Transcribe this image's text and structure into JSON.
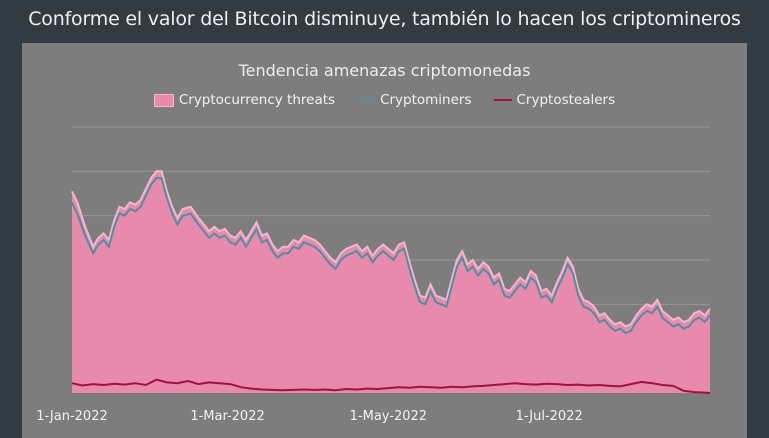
{
  "page": {
    "title": "Conforme el valor del Bitcoin disminuye, también lo hacen los criptomineros"
  },
  "colors": {
    "background": "#323a42",
    "panel": "#7d7d7d",
    "threats_fill": "#e88aab",
    "threats_line": "#f4b7cd",
    "miners": "#4f8fa0",
    "stealers": "#a3103e",
    "grid": "#999999"
  },
  "chart_data": {
    "type": "area",
    "title": "Tendencia amenazas criptomonedas",
    "xlabel": "",
    "ylabel": "",
    "grid": "horizontal",
    "legend_placement": "top",
    "x_tick_labels": [
      "1-Jan-2022",
      "1-Mar-2022",
      "1-May-2022",
      "1-Jul-2022"
    ],
    "x_tick_days": [
      0,
      59,
      120,
      181
    ],
    "x_range_days": [
      0,
      242
    ],
    "ylim": [
      0,
      6
    ],
    "series": [
      {
        "name": "Cryptocurrency threats",
        "kind": "area",
        "points": [
          [
            0,
            4.55
          ],
          [
            2,
            4.3
          ],
          [
            5,
            3.75
          ],
          [
            8,
            3.3
          ],
          [
            10,
            3.5
          ],
          [
            12,
            3.6
          ],
          [
            14,
            3.45
          ],
          [
            16,
            3.9
          ],
          [
            18,
            4.2
          ],
          [
            20,
            4.15
          ],
          [
            22,
            4.3
          ],
          [
            24,
            4.25
          ],
          [
            26,
            4.35
          ],
          [
            28,
            4.6
          ],
          [
            30,
            4.85
          ],
          [
            32,
            5.0
          ],
          [
            34,
            5.0
          ],
          [
            36,
            4.55
          ],
          [
            38,
            4.2
          ],
          [
            40,
            3.95
          ],
          [
            42,
            4.15
          ],
          [
            45,
            4.2
          ],
          [
            48,
            3.95
          ],
          [
            50,
            3.8
          ],
          [
            52,
            3.65
          ],
          [
            54,
            3.75
          ],
          [
            56,
            3.65
          ],
          [
            58,
            3.7
          ],
          [
            60,
            3.55
          ],
          [
            62,
            3.5
          ],
          [
            64,
            3.65
          ],
          [
            66,
            3.45
          ],
          [
            68,
            3.65
          ],
          [
            70,
            3.85
          ],
          [
            72,
            3.55
          ],
          [
            74,
            3.6
          ],
          [
            76,
            3.35
          ],
          [
            78,
            3.2
          ],
          [
            80,
            3.3
          ],
          [
            82,
            3.3
          ],
          [
            84,
            3.45
          ],
          [
            86,
            3.4
          ],
          [
            88,
            3.55
          ],
          [
            90,
            3.5
          ],
          [
            92,
            3.45
          ],
          [
            94,
            3.35
          ],
          [
            96,
            3.2
          ],
          [
            98,
            3.05
          ],
          [
            100,
            2.95
          ],
          [
            102,
            3.15
          ],
          [
            104,
            3.25
          ],
          [
            106,
            3.3
          ],
          [
            108,
            3.35
          ],
          [
            110,
            3.2
          ],
          [
            112,
            3.3
          ],
          [
            114,
            3.1
          ],
          [
            116,
            3.25
          ],
          [
            118,
            3.35
          ],
          [
            120,
            3.25
          ],
          [
            122,
            3.15
          ],
          [
            124,
            3.35
          ],
          [
            126,
            3.4
          ],
          [
            128,
            2.95
          ],
          [
            130,
            2.55
          ],
          [
            132,
            2.2
          ],
          [
            134,
            2.15
          ],
          [
            136,
            2.45
          ],
          [
            138,
            2.2
          ],
          [
            140,
            2.15
          ],
          [
            142,
            2.1
          ],
          [
            144,
            2.55
          ],
          [
            146,
            3.0
          ],
          [
            148,
            3.2
          ],
          [
            150,
            2.9
          ],
          [
            152,
            3.0
          ],
          [
            154,
            2.8
          ],
          [
            156,
            2.95
          ],
          [
            158,
            2.85
          ],
          [
            160,
            2.6
          ],
          [
            162,
            2.7
          ],
          [
            164,
            2.35
          ],
          [
            166,
            2.3
          ],
          [
            168,
            2.45
          ],
          [
            170,
            2.6
          ],
          [
            172,
            2.5
          ],
          [
            174,
            2.75
          ],
          [
            176,
            2.65
          ],
          [
            178,
            2.3
          ],
          [
            180,
            2.35
          ],
          [
            182,
            2.2
          ],
          [
            184,
            2.5
          ],
          [
            186,
            2.75
          ],
          [
            188,
            3.05
          ],
          [
            190,
            2.85
          ],
          [
            192,
            2.35
          ],
          [
            194,
            2.1
          ],
          [
            196,
            2.05
          ],
          [
            198,
            1.95
          ],
          [
            200,
            1.75
          ],
          [
            202,
            1.8
          ],
          [
            204,
            1.65
          ],
          [
            206,
            1.55
          ],
          [
            208,
            1.6
          ],
          [
            210,
            1.5
          ],
          [
            212,
            1.55
          ],
          [
            214,
            1.75
          ],
          [
            216,
            1.9
          ],
          [
            218,
            2.0
          ],
          [
            220,
            1.95
          ],
          [
            222,
            2.1
          ],
          [
            224,
            1.85
          ],
          [
            226,
            1.75
          ],
          [
            228,
            1.65
          ],
          [
            230,
            1.7
          ],
          [
            232,
            1.6
          ],
          [
            234,
            1.65
          ],
          [
            236,
            1.8
          ],
          [
            238,
            1.85
          ],
          [
            240,
            1.75
          ],
          [
            242,
            1.9
          ]
        ]
      },
      {
        "name": "Cryptominers",
        "kind": "line",
        "points": [
          [
            0,
            4.3
          ],
          [
            2,
            4.05
          ],
          [
            5,
            3.55
          ],
          [
            8,
            3.15
          ],
          [
            10,
            3.35
          ],
          [
            12,
            3.45
          ],
          [
            14,
            3.3
          ],
          [
            16,
            3.75
          ],
          [
            18,
            4.05
          ],
          [
            20,
            4.0
          ],
          [
            22,
            4.15
          ],
          [
            24,
            4.1
          ],
          [
            26,
            4.2
          ],
          [
            28,
            4.45
          ],
          [
            30,
            4.7
          ],
          [
            32,
            4.85
          ],
          [
            34,
            4.85
          ],
          [
            36,
            4.4
          ],
          [
            38,
            4.05
          ],
          [
            40,
            3.8
          ],
          [
            42,
            4.0
          ],
          [
            45,
            4.05
          ],
          [
            48,
            3.8
          ],
          [
            50,
            3.65
          ],
          [
            52,
            3.5
          ],
          [
            54,
            3.6
          ],
          [
            56,
            3.5
          ],
          [
            58,
            3.55
          ],
          [
            60,
            3.4
          ],
          [
            62,
            3.35
          ],
          [
            64,
            3.5
          ],
          [
            66,
            3.3
          ],
          [
            68,
            3.5
          ],
          [
            70,
            3.7
          ],
          [
            72,
            3.4
          ],
          [
            74,
            3.45
          ],
          [
            76,
            3.2
          ],
          [
            78,
            3.05
          ],
          [
            80,
            3.15
          ],
          [
            82,
            3.15
          ],
          [
            84,
            3.3
          ],
          [
            86,
            3.25
          ],
          [
            88,
            3.4
          ],
          [
            90,
            3.35
          ],
          [
            92,
            3.3
          ],
          [
            94,
            3.2
          ],
          [
            96,
            3.05
          ],
          [
            98,
            2.9
          ],
          [
            100,
            2.8
          ],
          [
            102,
            3.0
          ],
          [
            104,
            3.1
          ],
          [
            106,
            3.15
          ],
          [
            108,
            3.2
          ],
          [
            110,
            3.05
          ],
          [
            112,
            3.15
          ],
          [
            114,
            2.95
          ],
          [
            116,
            3.1
          ],
          [
            118,
            3.2
          ],
          [
            120,
            3.1
          ],
          [
            122,
            3.0
          ],
          [
            124,
            3.2
          ],
          [
            126,
            3.25
          ],
          [
            128,
            2.8
          ],
          [
            130,
            2.4
          ],
          [
            132,
            2.05
          ],
          [
            134,
            2.0
          ],
          [
            136,
            2.3
          ],
          [
            138,
            2.05
          ],
          [
            140,
            2.0
          ],
          [
            142,
            1.95
          ],
          [
            144,
            2.4
          ],
          [
            146,
            2.85
          ],
          [
            148,
            3.05
          ],
          [
            150,
            2.75
          ],
          [
            152,
            2.85
          ],
          [
            154,
            2.65
          ],
          [
            156,
            2.8
          ],
          [
            158,
            2.7
          ],
          [
            160,
            2.45
          ],
          [
            162,
            2.55
          ],
          [
            164,
            2.2
          ],
          [
            166,
            2.15
          ],
          [
            168,
            2.3
          ],
          [
            170,
            2.45
          ],
          [
            172,
            2.35
          ],
          [
            174,
            2.6
          ],
          [
            176,
            2.5
          ],
          [
            178,
            2.15
          ],
          [
            180,
            2.2
          ],
          [
            182,
            2.05
          ],
          [
            184,
            2.35
          ],
          [
            186,
            2.6
          ],
          [
            188,
            2.9
          ],
          [
            190,
            2.7
          ],
          [
            192,
            2.2
          ],
          [
            194,
            1.95
          ],
          [
            196,
            1.9
          ],
          [
            198,
            1.8
          ],
          [
            200,
            1.6
          ],
          [
            202,
            1.65
          ],
          [
            204,
            1.5
          ],
          [
            206,
            1.4
          ],
          [
            208,
            1.45
          ],
          [
            210,
            1.35
          ],
          [
            212,
            1.4
          ],
          [
            214,
            1.6
          ],
          [
            216,
            1.75
          ],
          [
            218,
            1.85
          ],
          [
            220,
            1.8
          ],
          [
            222,
            1.95
          ],
          [
            224,
            1.7
          ],
          [
            226,
            1.6
          ],
          [
            228,
            1.5
          ],
          [
            230,
            1.55
          ],
          [
            232,
            1.45
          ],
          [
            234,
            1.5
          ],
          [
            236,
            1.65
          ],
          [
            238,
            1.7
          ],
          [
            240,
            1.6
          ],
          [
            242,
            1.75
          ]
        ]
      },
      {
        "name": "Cryptostealers",
        "kind": "line",
        "points": [
          [
            0,
            0.22
          ],
          [
            4,
            0.17
          ],
          [
            8,
            0.2
          ],
          [
            12,
            0.18
          ],
          [
            16,
            0.21
          ],
          [
            20,
            0.19
          ],
          [
            24,
            0.22
          ],
          [
            28,
            0.18
          ],
          [
            32,
            0.3
          ],
          [
            36,
            0.24
          ],
          [
            40,
            0.22
          ],
          [
            44,
            0.27
          ],
          [
            48,
            0.2
          ],
          [
            52,
            0.24
          ],
          [
            56,
            0.22
          ],
          [
            60,
            0.2
          ],
          [
            64,
            0.13
          ],
          [
            68,
            0.1
          ],
          [
            72,
            0.08
          ],
          [
            76,
            0.07
          ],
          [
            80,
            0.06
          ],
          [
            84,
            0.07
          ],
          [
            88,
            0.08
          ],
          [
            92,
            0.07
          ],
          [
            96,
            0.08
          ],
          [
            100,
            0.06
          ],
          [
            104,
            0.09
          ],
          [
            108,
            0.08
          ],
          [
            112,
            0.1
          ],
          [
            116,
            0.09
          ],
          [
            120,
            0.11
          ],
          [
            124,
            0.13
          ],
          [
            128,
            0.12
          ],
          [
            132,
            0.14
          ],
          [
            136,
            0.13
          ],
          [
            140,
            0.12
          ],
          [
            144,
            0.14
          ],
          [
            148,
            0.13
          ],
          [
            152,
            0.15
          ],
          [
            156,
            0.16
          ],
          [
            160,
            0.18
          ],
          [
            164,
            0.2
          ],
          [
            168,
            0.22
          ],
          [
            172,
            0.2
          ],
          [
            176,
            0.19
          ],
          [
            180,
            0.21
          ],
          [
            184,
            0.2
          ],
          [
            188,
            0.18
          ],
          [
            192,
            0.19
          ],
          [
            196,
            0.17
          ],
          [
            200,
            0.18
          ],
          [
            204,
            0.16
          ],
          [
            208,
            0.15
          ],
          [
            212,
            0.2
          ],
          [
            216,
            0.25
          ],
          [
            220,
            0.22
          ],
          [
            224,
            0.18
          ],
          [
            228,
            0.16
          ],
          [
            232,
            0.05
          ],
          [
            236,
            0.02
          ],
          [
            240,
            0.01
          ],
          [
            242,
            0.0
          ]
        ]
      }
    ]
  }
}
